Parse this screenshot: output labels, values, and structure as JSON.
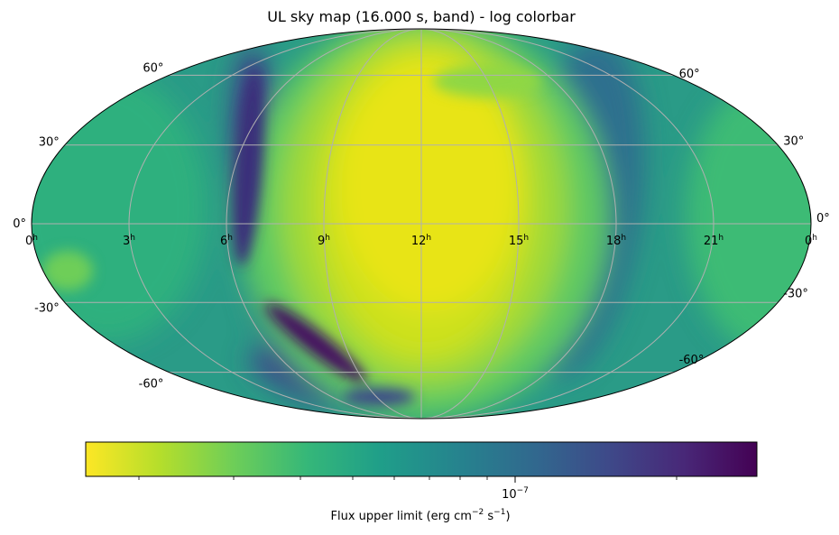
{
  "chart_data": {
    "type": "heatmap",
    "projection": "mollweide",
    "title": "UL sky map (16.000 s, band) - log colorbar",
    "colormap": "viridis_r",
    "color_scale": "log",
    "grid": true,
    "ra_tick_labels": [
      {
        "base": "0",
        "sup": "h"
      },
      {
        "base": "21",
        "sup": "h"
      },
      {
        "base": "18",
        "sup": "h"
      },
      {
        "base": "15",
        "sup": "h"
      },
      {
        "base": "12",
        "sup": "h"
      },
      {
        "base": "9",
        "sup": "h"
      },
      {
        "base": "6",
        "sup": "h"
      },
      {
        "base": "3",
        "sup": "h"
      },
      {
        "base": "0",
        "sup": "h"
      }
    ],
    "dec_tick_labels": {
      "left": [
        "60°",
        "30°",
        "0°",
        "-30°",
        "-60°"
      ],
      "right": [
        "60°",
        "30°",
        "0°",
        "-30°",
        "-60°"
      ]
    },
    "colorbar": {
      "orientation": "horizontal",
      "label_parts": [
        "Flux upper limit (erg cm",
        "−2",
        " s",
        "−1",
        ")"
      ],
      "tick_label": {
        "base": "10",
        "exp": "−7"
      },
      "tick_value": 1e-07
    },
    "features": {
      "bright_region_center_ra_hours": 11,
      "bright_region_center_dec_deg": 10,
      "dark_arc_ra_hours": 17.5
    }
  }
}
